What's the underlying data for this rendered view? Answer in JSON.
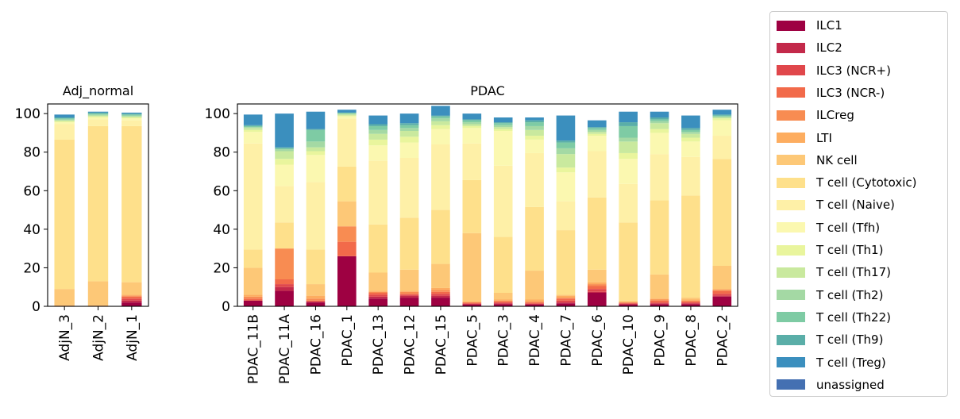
{
  "chart_data": [
    {
      "type": "bar",
      "stacked": true,
      "title": "Adj_normal",
      "categories": [
        "AdjN_3",
        "AdjN_2",
        "AdjN_1"
      ],
      "ylim": [
        0,
        105
      ],
      "yticks": [
        0,
        20,
        40,
        60,
        80,
        100
      ],
      "series": [
        {
          "name": "ILC1",
          "values": [
            0,
            0,
            2
          ]
        },
        {
          "name": "ILC2",
          "values": [
            0,
            0,
            1
          ]
        },
        {
          "name": "ILC3 (NCR+)",
          "values": [
            0,
            0,
            1
          ]
        },
        {
          "name": "ILC3 (NCR-)",
          "values": [
            0,
            0,
            1
          ]
        },
        {
          "name": "ILCreg",
          "values": [
            0,
            0,
            0.5
          ]
        },
        {
          "name": "LTI",
          "values": [
            0.5,
            0.5,
            0.5
          ]
        },
        {
          "name": "NK cell",
          "values": [
            8.5,
            12.5,
            6.5
          ]
        },
        {
          "name": "T cell (Cytotoxic)",
          "values": [
            77.5,
            80.5,
            81
          ]
        },
        {
          "name": "T cell (Naive)",
          "values": [
            8,
            3.5,
            3
          ]
        },
        {
          "name": "T cell (Tfh)",
          "values": [
            1,
            1,
            1
          ]
        },
        {
          "name": "T cell (Th1)",
          "values": [
            0.5,
            0.5,
            0.5
          ]
        },
        {
          "name": "T cell (Th17)",
          "values": [
            0.5,
            0.5,
            0.5
          ]
        },
        {
          "name": "T cell (Th2)",
          "values": [
            0.5,
            0.5,
            0.5
          ]
        },
        {
          "name": "T cell (Th22)",
          "values": [
            0.5,
            0.5,
            0.5
          ]
        },
        {
          "name": "T cell (Th9)",
          "values": [
            0.5,
            0.5,
            0.5
          ]
        },
        {
          "name": "T cell (Treg)",
          "values": [
            1.5,
            0.5,
            0.5
          ]
        },
        {
          "name": "unassigned",
          "values": [
            0,
            0,
            0
          ]
        }
      ]
    },
    {
      "type": "bar",
      "stacked": true,
      "title": "PDAC",
      "categories": [
        "PDAC_11B",
        "PDAC_11A",
        "PDAC_16",
        "PDAC_1",
        "PDAC_13",
        "PDAC_12",
        "PDAC_15",
        "PDAC_5",
        "PDAC_3",
        "PDAC_4",
        "PDAC_7",
        "PDAC_6",
        "PDAC_10",
        "PDAC_9",
        "PDAC_8",
        "PDAC_2"
      ],
      "ylim": [
        0,
        105
      ],
      "yticks": [
        0,
        20,
        40,
        60,
        80,
        100
      ],
      "series": [
        {
          "name": "ILC1",
          "values": [
            3,
            8,
            2,
            26,
            4,
            4.5,
            4.5,
            1,
            1,
            1,
            1.5,
            7,
            1,
            1,
            1,
            5
          ]
        },
        {
          "name": "ILC2",
          "values": [
            0,
            2,
            0.5,
            0,
            1,
            1,
            1,
            0,
            0.5,
            0,
            0.5,
            0.5,
            0,
            0.5,
            0.5,
            0.5
          ]
        },
        {
          "name": "ILC3 (NCR+)",
          "values": [
            0,
            1.5,
            0,
            0,
            1,
            0.5,
            1,
            0.5,
            0.5,
            0.5,
            1,
            1.5,
            0.5,
            0.5,
            0.5,
            1
          ]
        },
        {
          "name": "ILC3 (NCR-)",
          "values": [
            1,
            2.5,
            0.5,
            7.5,
            1,
            0.5,
            1,
            0.5,
            0.5,
            0.5,
            1,
            1.5,
            0.5,
            1,
            0.5,
            1.5
          ]
        },
        {
          "name": "ILCreg",
          "values": [
            1,
            16,
            1,
            8,
            0.5,
            1,
            1,
            0,
            0.5,
            0.5,
            0.5,
            1,
            0,
            0.5,
            0.5,
            0.5
          ]
        },
        {
          "name": "LTI",
          "values": [
            1,
            0,
            1.5,
            0,
            0.5,
            0.5,
            1,
            0.5,
            0.5,
            1,
            1,
            1,
            0,
            0.5,
            0.5,
            0.5
          ]
        },
        {
          "name": "NK cell",
          "values": [
            14,
            0,
            6,
            13,
            9.5,
            11,
            12.5,
            35.5,
            3.5,
            15,
            0.5,
            6.5,
            1,
            12.5,
            1,
            12
          ]
        },
        {
          "name": "T cell (Cytotoxic)",
          "values": [
            9.5,
            13.5,
            18,
            18,
            25,
            27,
            28,
            27.5,
            29,
            33,
            33.5,
            37.5,
            40.5,
            38.5,
            53,
            55.5
          ]
        },
        {
          "name": "T cell (Naive)",
          "values": [
            55,
            19,
            35,
            25,
            33,
            31,
            34,
            19,
            37,
            28,
            15,
            24,
            20,
            24,
            20,
            12
          ]
        },
        {
          "name": "T cell (Tfh)",
          "values": [
            6,
            11,
            14,
            1,
            8,
            8,
            8,
            8,
            18,
            7,
            15,
            8,
            13,
            11,
            8,
            8
          ]
        },
        {
          "name": "T cell (Th1)",
          "values": [
            1,
            3,
            2,
            0.5,
            3,
            3,
            2,
            1,
            1,
            2,
            2.5,
            1,
            3,
            2,
            2,
            1
          ]
        },
        {
          "name": "T cell (Th17)",
          "values": [
            1,
            4,
            2,
            0.5,
            3,
            3,
            2,
            1,
            1,
            3,
            7,
            1,
            6,
            3,
            2,
            0.5
          ]
        },
        {
          "name": "T cell (Th2)",
          "values": [
            0.5,
            1,
            3,
            0.5,
            2,
            1.5,
            1.5,
            1,
            1,
            2,
            3,
            1,
            2,
            1,
            1,
            0.5
          ]
        },
        {
          "name": "T cell (Th22)",
          "values": [
            0.5,
            0.5,
            6,
            0.5,
            2,
            1.5,
            1,
            1,
            1,
            2,
            3,
            1,
            6,
            1,
            1,
            0.5
          ]
        },
        {
          "name": "T cell (Th9)",
          "values": [
            0.5,
            0.5,
            0.5,
            0,
            1,
            1,
            0.5,
            0.5,
            0.5,
            1,
            1,
            0.5,
            2,
            1,
            1,
            0.5
          ]
        },
        {
          "name": "T cell (Treg)",
          "values": [
            5.5,
            17.5,
            9,
            1.5,
            4.5,
            5,
            5,
            3,
            2.5,
            1.5,
            13,
            3.5,
            5.5,
            3,
            6.5,
            2.5
          ]
        },
        {
          "name": "unassigned",
          "values": [
            0,
            0,
            0,
            0,
            0,
            0,
            0,
            0,
            0,
            0,
            0,
            0,
            0,
            0,
            0,
            0
          ]
        }
      ]
    }
  ],
  "colors": [
    "#9e0142",
    "#c3294a",
    "#e0474b",
    "#f26a4a",
    "#f88c52",
    "#fdad60",
    "#fdc877",
    "#fee08b",
    "#fef0a7",
    "#fbf8b0",
    "#e9f59d",
    "#c9e99e",
    "#a4d9a4",
    "#7ecba4",
    "#5aaea8",
    "#3b8fbe",
    "#4470b2"
  ],
  "legend": {
    "placement": "outside-right",
    "items": [
      "ILC1",
      "ILC2",
      "ILC3 (NCR+)",
      "ILC3 (NCR-)",
      "ILCreg",
      "LTI",
      "NK cell",
      "T cell (Cytotoxic)",
      "T cell (Naive)",
      "T cell (Tfh)",
      "T cell (Th1)",
      "T cell (Th17)",
      "T cell (Th2)",
      "T cell (Th22)",
      "T cell (Th9)",
      "T cell (Treg)",
      "unassigned"
    ]
  }
}
